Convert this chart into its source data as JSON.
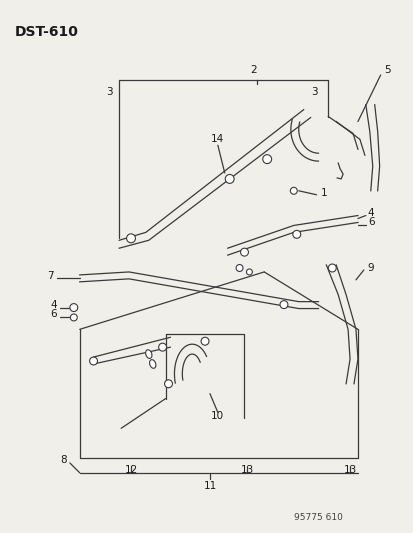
{
  "title": "DST-610",
  "footer": "95775 610",
  "bg_color": "#f0efea",
  "line_color": "#3a3a3a",
  "text_color": "#1a1a1a",
  "figsize": [
    4.14,
    5.33
  ],
  "dpi": 100
}
